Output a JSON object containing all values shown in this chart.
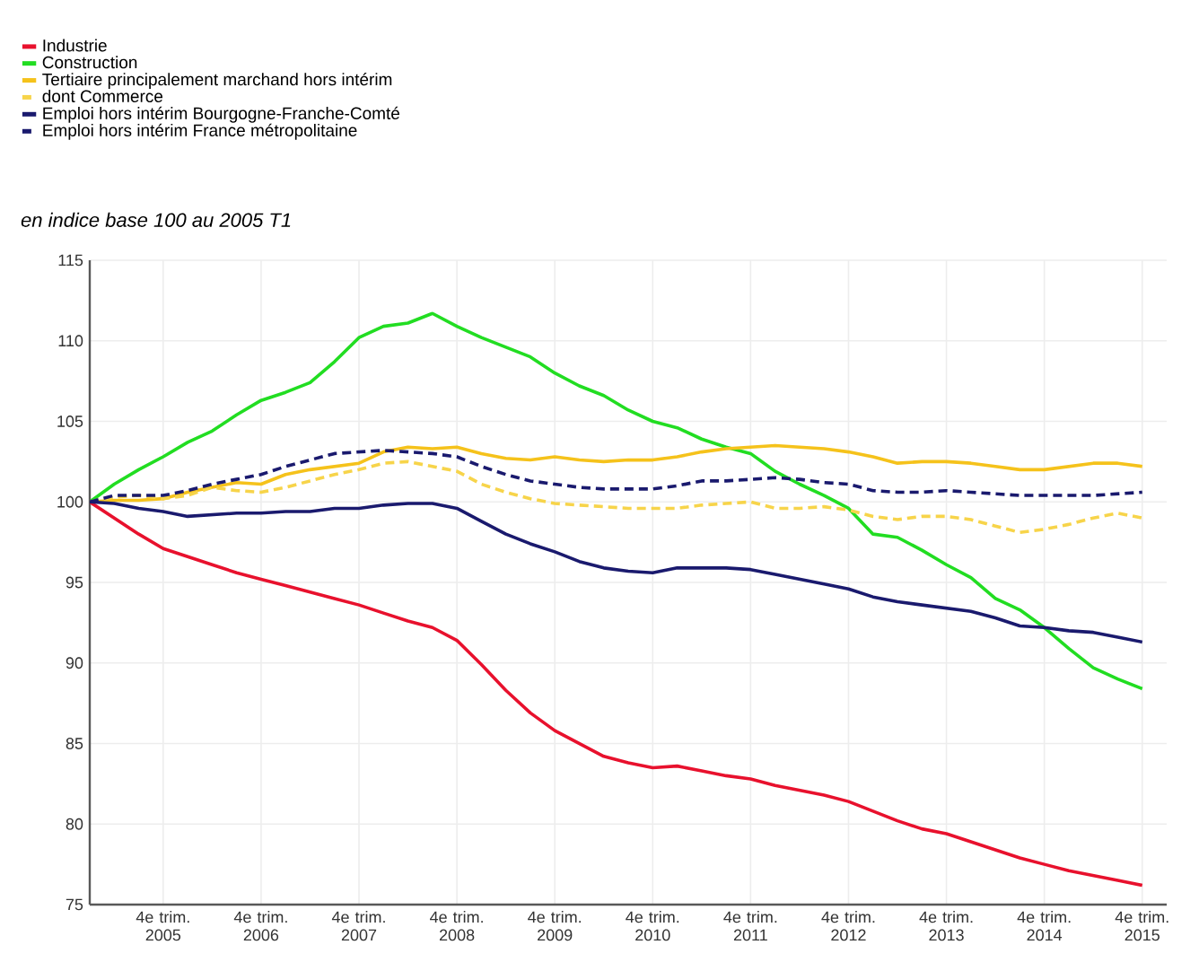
{
  "chart_data": {
    "type": "line",
    "subtitle": "en indice base 100 au 2005 T1",
    "categories": [
      null,
      null,
      null,
      "4e trim. 2005",
      null,
      null,
      null,
      "4e trim. 2006",
      null,
      null,
      null,
      "4e trim. 2007",
      null,
      null,
      null,
      "4e trim. 2008",
      null,
      null,
      null,
      "4e trim. 2009",
      null,
      null,
      null,
      "4e trim. 2010",
      null,
      null,
      null,
      "4e trim. 2011",
      null,
      null,
      null,
      "4e trim. 2012",
      null,
      null,
      null,
      "4e trim. 2013",
      null,
      null,
      null,
      "4e trim. 2014",
      null,
      null,
      null,
      "4e trim. 2015"
    ],
    "ylim": [
      75,
      115
    ],
    "yticks": [
      75,
      80,
      85,
      90,
      95,
      100,
      105,
      110,
      115
    ],
    "grid": true,
    "legend": "top left",
    "marker": "none",
    "series": [
      {
        "name": "Industrie",
        "color": "#e8112d",
        "line_style": "solid",
        "values": [
          100,
          99.0,
          98.0,
          97.1,
          96.6,
          96.1,
          95.6,
          95.2,
          94.8,
          94.4,
          94.0,
          93.6,
          93.1,
          92.6,
          92.2,
          91.4,
          89.9,
          88.3,
          86.9,
          85.8,
          85.0,
          84.2,
          83.8,
          83.5,
          83.6,
          83.3,
          83.0,
          82.8,
          82.4,
          82.1,
          81.8,
          81.4,
          80.8,
          80.2,
          79.7,
          79.4,
          78.9,
          78.4,
          77.9,
          77.5,
          77.1,
          76.8,
          76.5,
          76.2
        ]
      },
      {
        "name": "Construction",
        "color": "#22dd22",
        "line_style": "solid",
        "values": [
          100,
          101.1,
          102.0,
          102.8,
          103.7,
          104.4,
          105.4,
          106.3,
          106.8,
          107.4,
          108.7,
          110.2,
          110.9,
          111.1,
          111.7,
          110.9,
          110.2,
          109.6,
          109.0,
          108.0,
          107.2,
          106.6,
          105.7,
          105.0,
          104.6,
          103.9,
          103.4,
          103.0,
          101.9,
          101.1,
          100.4,
          99.6,
          98.0,
          97.8,
          97.0,
          96.1,
          95.3,
          94.0,
          93.3,
          92.2,
          90.9,
          89.7,
          89.0,
          88.4
        ]
      },
      {
        "name": "Tertiaire principalement marchand hors intérim",
        "color": "#f5c21b",
        "line_style": "solid",
        "values": [
          100,
          100.1,
          100.1,
          100.2,
          100.6,
          100.9,
          101.2,
          101.1,
          101.7,
          102.0,
          102.2,
          102.4,
          103.1,
          103.4,
          103.3,
          103.4,
          103.0,
          102.7,
          102.6,
          102.8,
          102.6,
          102.5,
          102.6,
          102.6,
          102.8,
          103.1,
          103.3,
          103.4,
          103.5,
          103.4,
          103.3,
          103.1,
          102.8,
          102.4,
          102.5,
          102.5,
          102.4,
          102.2,
          102.0,
          102.0,
          102.2,
          102.4,
          102.4,
          102.2
        ]
      },
      {
        "name": "dont Commerce",
        "color": "#f7d44a",
        "line_style": "dashed",
        "values": [
          100,
          100.3,
          100.4,
          100.2,
          100.4,
          100.9,
          100.7,
          100.6,
          100.9,
          101.3,
          101.7,
          102.0,
          102.4,
          102.5,
          102.2,
          101.9,
          101.1,
          100.6,
          100.2,
          99.9,
          99.8,
          99.7,
          99.6,
          99.6,
          99.6,
          99.8,
          99.9,
          100.0,
          99.6,
          99.6,
          99.7,
          99.5,
          99.1,
          98.9,
          99.1,
          99.1,
          98.9,
          98.5,
          98.1,
          98.3,
          98.6,
          99.0,
          99.3,
          99.0
        ]
      },
      {
        "name": "Emploi hors intérim Bourgogne-Franche-Comté",
        "color": "#1a1a6e",
        "line_style": "solid",
        "values": [
          100,
          99.9,
          99.6,
          99.4,
          99.1,
          99.2,
          99.3,
          99.3,
          99.4,
          99.4,
          99.6,
          99.6,
          99.8,
          99.9,
          99.9,
          99.6,
          98.8,
          98.0,
          97.4,
          96.9,
          96.3,
          95.9,
          95.7,
          95.6,
          95.9,
          95.9,
          95.9,
          95.8,
          95.5,
          95.2,
          94.9,
          94.6,
          94.1,
          93.8,
          93.6,
          93.4,
          93.2,
          92.8,
          92.3,
          92.2,
          92.0,
          91.9,
          91.6,
          91.3
        ]
      },
      {
        "name": "Emploi hors intérim France métropolitaine",
        "color": "#1a1a6e",
        "line_style": "dashed",
        "values": [
          100,
          100.4,
          100.4,
          100.4,
          100.7,
          101.1,
          101.4,
          101.7,
          102.2,
          102.6,
          103.0,
          103.1,
          103.2,
          103.1,
          103.0,
          102.8,
          102.2,
          101.7,
          101.3,
          101.1,
          100.9,
          100.8,
          100.8,
          100.8,
          101.0,
          101.3,
          101.3,
          101.4,
          101.5,
          101.4,
          101.2,
          101.1,
          100.7,
          100.6,
          100.6,
          100.7,
          100.6,
          100.5,
          100.4,
          100.4,
          100.4,
          100.4,
          100.5,
          100.6
        ]
      }
    ]
  }
}
